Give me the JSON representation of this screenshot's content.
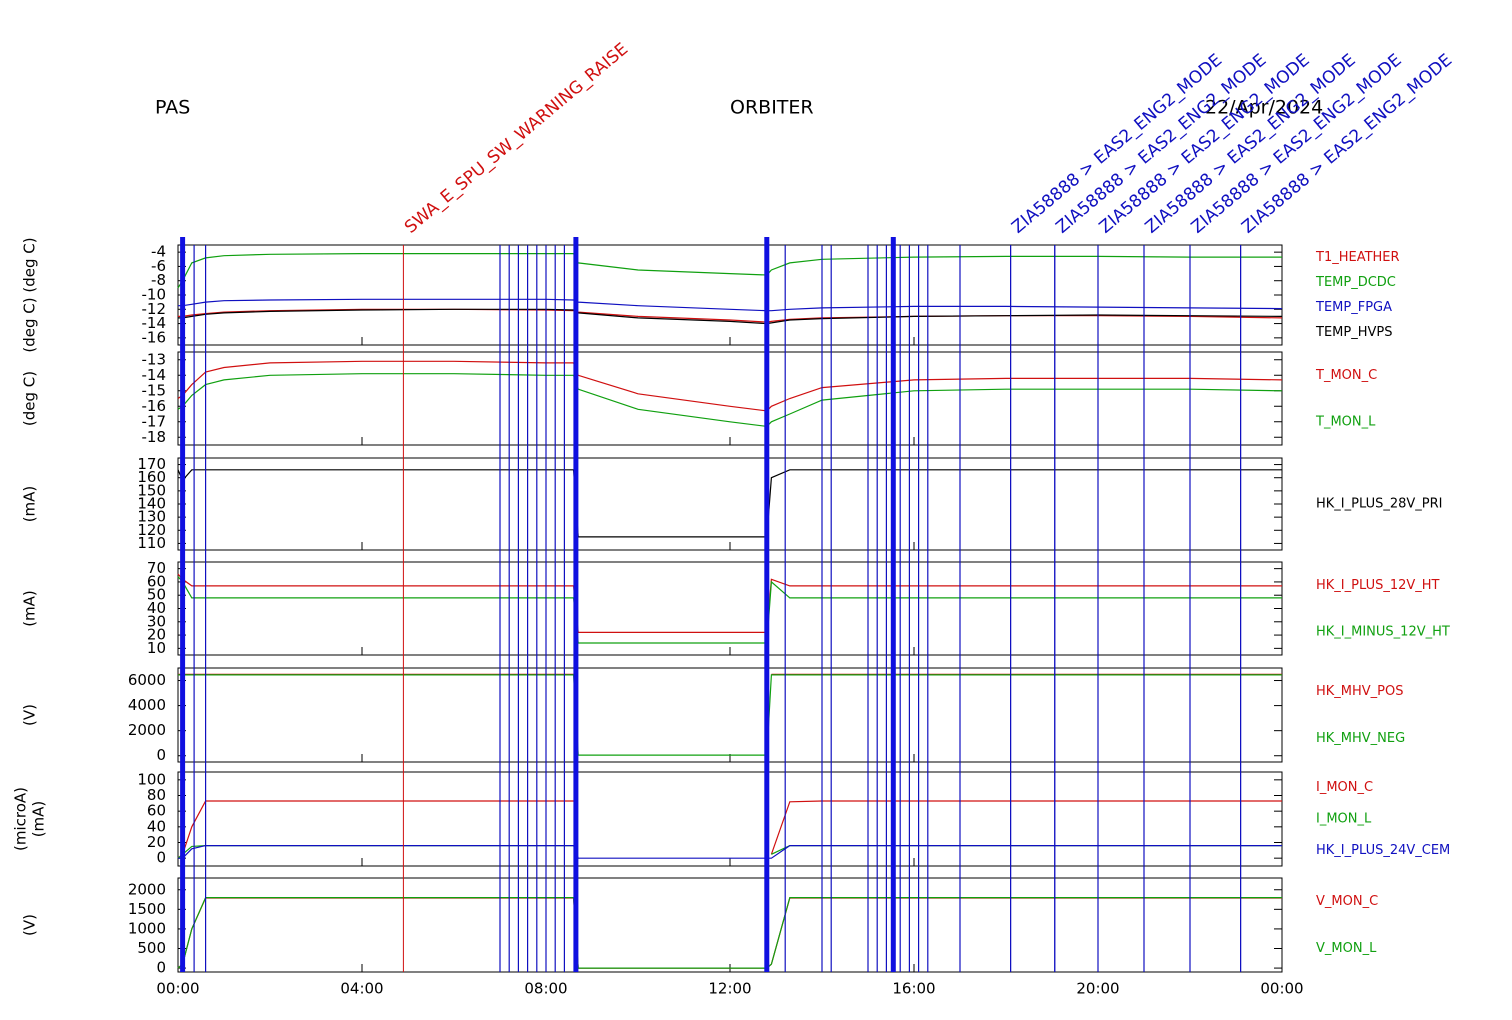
{
  "header": {
    "left": "PAS",
    "center": "ORBITER",
    "right": "22/Apr/2024"
  },
  "events": {
    "lines": [
      0.35,
      0.6,
      7.0,
      7.2,
      7.4,
      7.6,
      7.8,
      8.0,
      8.2,
      8.4,
      13.2,
      14.0,
      14.2,
      15.0,
      15.2,
      15.4,
      15.7,
      15.9,
      16.1,
      16.3,
      17.0,
      18.1,
      19.06,
      20.0,
      21.0,
      22.0,
      23.1
    ],
    "thick_lines": [
      0.1,
      8.65,
      12.8,
      15.55
    ],
    "labeled": [
      {
        "x": 4.9,
        "label": "SWA_E_SPU_SW_WARNING_RAISE",
        "color": "#d01010"
      },
      {
        "x": 18.1,
        "label": "ZIA58888 > EAS2_ENG2_MODE",
        "color": "#1010c0"
      },
      {
        "x": 19.06,
        "label": "ZIA58888 > EAS2_ENG2_MODE",
        "color": "#1010c0"
      },
      {
        "x": 20.0,
        "label": "ZIA58888 > EAS2_ENG2_MODE",
        "color": "#1010c0"
      },
      {
        "x": 21.0,
        "label": "ZIA58888 > EAS2_ENG2_MODE",
        "color": "#1010c0"
      },
      {
        "x": 22.0,
        "label": "ZIA58888 > EAS2_ENG2_MODE",
        "color": "#1010c0"
      },
      {
        "x": 23.1,
        "label": "ZIA58888 > EAS2_ENG2_MODE",
        "color": "#1010c0"
      }
    ]
  },
  "chart_data": [
    {
      "type": "line",
      "ylabel": [
        "(deg C) (deg C)"
      ],
      "ylim": [
        -17,
        -3
      ],
      "yticks": [
        -4,
        -6,
        -8,
        -10,
        -12,
        -14,
        -16
      ],
      "x": [
        0,
        0.1,
        0.3,
        0.6,
        1,
        2,
        4,
        6,
        8,
        8.6,
        8.7,
        10,
        12,
        12.8,
        12.9,
        13.3,
        14,
        16,
        18,
        20,
        22,
        24
      ],
      "series": [
        {
          "name": "T1_HEATHER",
          "color": "#d01010",
          "values": [
            -13,
            -13,
            -12.8,
            -12.6,
            -12.4,
            -12.2,
            -12,
            -12,
            -12.1,
            -12.2,
            -12.4,
            -13,
            -13.5,
            -13.8,
            -13.7,
            -13.4,
            -13.2,
            -13,
            -12.9,
            -12.9,
            -13,
            -13.2
          ]
        },
        {
          "name": "TEMP_DCDC",
          "color": "#10a010",
          "values": [
            -9,
            -8,
            -5.5,
            -4.8,
            -4.5,
            -4.3,
            -4.2,
            -4.2,
            -4.2,
            -4.2,
            -5.5,
            -6.5,
            -7,
            -7.2,
            -6.5,
            -5.5,
            -5,
            -4.7,
            -4.6,
            -4.6,
            -4.7,
            -4.7
          ]
        },
        {
          "name": "TEMP_FPGA",
          "color": "#1010c0",
          "values": [
            -11.5,
            -11.5,
            -11.3,
            -11,
            -10.8,
            -10.7,
            -10.6,
            -10.6,
            -10.6,
            -10.7,
            -11,
            -11.5,
            -12,
            -12.2,
            -12.2,
            -12,
            -11.8,
            -11.6,
            -11.6,
            -11.7,
            -11.8,
            -11.9
          ]
        },
        {
          "name": "TEMP_HVPS",
          "color": "#000000",
          "values": [
            -13.2,
            -13.2,
            -13,
            -12.7,
            -12.5,
            -12.3,
            -12.1,
            -12,
            -12,
            -12.1,
            -12.5,
            -13.2,
            -13.7,
            -14,
            -13.9,
            -13.5,
            -13.3,
            -13,
            -12.9,
            -12.8,
            -12.9,
            -13
          ]
        }
      ]
    },
    {
      "type": "line",
      "ylabel": [
        "(deg C)"
      ],
      "ylim": [
        -18.5,
        -12.5
      ],
      "yticks": [
        -13,
        -14,
        -15,
        -16,
        -17,
        -18
      ],
      "x": [
        0,
        0.1,
        0.3,
        0.6,
        1,
        2,
        4,
        6,
        8,
        8.6,
        8.7,
        10,
        12,
        12.8,
        12.9,
        13.3,
        14,
        16,
        18,
        20,
        22,
        24
      ],
      "series": [
        {
          "name": "T_MON_C",
          "color": "#d01010",
          "values": [
            -15.5,
            -15.3,
            -14.6,
            -13.8,
            -13.5,
            -13.2,
            -13.1,
            -13.1,
            -13.2,
            -13.2,
            -14,
            -15.2,
            -16,
            -16.3,
            -16,
            -15.5,
            -14.8,
            -14.3,
            -14.2,
            -14.2,
            -14.2,
            -14.3
          ]
        },
        {
          "name": "T_MON_L",
          "color": "#10a010",
          "values": [
            -16.2,
            -16,
            -15.3,
            -14.6,
            -14.3,
            -14,
            -13.9,
            -13.9,
            -14,
            -14,
            -14.9,
            -16.2,
            -17,
            -17.3,
            -17,
            -16.5,
            -15.6,
            -15,
            -14.9,
            -14.9,
            -14.9,
            -15
          ]
        }
      ]
    },
    {
      "type": "line",
      "ylabel": [
        "(mA)"
      ],
      "ylim": [
        105,
        175
      ],
      "yticks": [
        110,
        120,
        130,
        140,
        150,
        160,
        170
      ],
      "x": [
        0,
        0.1,
        0.3,
        0.6,
        1,
        2,
        4,
        6,
        8,
        8.6,
        8.7,
        10,
        12,
        12.8,
        12.9,
        13.3,
        14,
        16,
        18,
        20,
        22,
        24
      ],
      "series": [
        {
          "name": "HK_I_PLUS_28V_PRI",
          "color": "#000000",
          "values": [
            166,
            158,
            166,
            166,
            166,
            166,
            166,
            166,
            166,
            166,
            115,
            115,
            115,
            115,
            160,
            166,
            166,
            166,
            166,
            166,
            166,
            166
          ]
        }
      ]
    },
    {
      "type": "line",
      "ylabel": [
        "(mA)"
      ],
      "ylim": [
        5,
        75
      ],
      "yticks": [
        10,
        20,
        30,
        40,
        50,
        60,
        70
      ],
      "x": [
        0,
        0.1,
        0.3,
        0.6,
        1,
        2,
        4,
        6,
        8,
        8.6,
        8.7,
        10,
        12,
        12.8,
        12.9,
        13.3,
        14,
        16,
        18,
        20,
        22,
        24
      ],
      "series": [
        {
          "name": "HK_I_PLUS_12V_HT",
          "color": "#d01010",
          "values": [
            66,
            62,
            57,
            57,
            57,
            57,
            57,
            57,
            57,
            57,
            22,
            22,
            22,
            22,
            62,
            57,
            57,
            57,
            57,
            57,
            57,
            57
          ]
        },
        {
          "name": "HK_I_MINUS_12V_HT",
          "color": "#10a010",
          "values": [
            64,
            60,
            48,
            48,
            48,
            48,
            48,
            48,
            48,
            48,
            14,
            14,
            14,
            14,
            60,
            48,
            48,
            48,
            48,
            48,
            48,
            48
          ]
        }
      ]
    },
    {
      "type": "line",
      "ylabel": [
        "(V)"
      ],
      "ylim": [
        -500,
        7000
      ],
      "yticks": [
        0,
        2000,
        4000,
        6000
      ],
      "x": [
        0,
        0.1,
        0.3,
        0.6,
        1,
        2,
        4,
        6,
        8,
        8.6,
        8.7,
        10,
        12,
        12.8,
        12.9,
        13.3,
        14,
        16,
        18,
        20,
        22,
        24
      ],
      "series": [
        {
          "name": "HK_MHV_POS",
          "color": "#d01010",
          "values": [
            6500,
            6500,
            6500,
            6500,
            6500,
            6500,
            6500,
            6500,
            6500,
            6500,
            null,
            null,
            null,
            null,
            6500,
            6500,
            6500,
            6500,
            6500,
            6500,
            6500,
            6500
          ]
        },
        {
          "name": "HK_MHV_NEG",
          "color": "#10a010",
          "values": [
            6450,
            6450,
            6450,
            6450,
            6450,
            6450,
            6450,
            6450,
            6450,
            6450,
            50,
            50,
            50,
            50,
            6450,
            6450,
            6450,
            6450,
            6450,
            6450,
            6450,
            6450
          ]
        }
      ]
    },
    {
      "type": "line",
      "ylabel": [
        "(microA)",
        "(mA)"
      ],
      "ylim": [
        -10,
        110
      ],
      "yticks": [
        0,
        20,
        40,
        60,
        80,
        100
      ],
      "x": [
        0,
        0.1,
        0.3,
        0.6,
        1,
        2,
        4,
        6,
        8,
        8.6,
        8.7,
        10,
        12,
        12.8,
        12.9,
        13.3,
        14,
        16,
        18,
        20,
        22,
        24
      ],
      "series": [
        {
          "name": "I_MON_C",
          "color": "#d01010",
          "values": [
            0,
            5,
            40,
            73,
            73,
            73,
            73,
            73,
            73,
            73,
            null,
            null,
            null,
            null,
            5,
            72,
            73,
            73,
            73,
            73,
            73,
            73
          ]
        },
        {
          "name": "I_MON_L",
          "color": "#10a010",
          "values": [
            0,
            5,
            15,
            16,
            16,
            16,
            16,
            16,
            16,
            16,
            null,
            null,
            null,
            null,
            5,
            16,
            16,
            16,
            16,
            16,
            16,
            16
          ]
        },
        {
          "name": "HK_I_PLUS_24V_CEM",
          "color": "#1010c0",
          "values": [
            0,
            0,
            12,
            16,
            16,
            16,
            16,
            16,
            16,
            16,
            0,
            0,
            0,
            0,
            0,
            16,
            16,
            16,
            16,
            16,
            16,
            16
          ]
        }
      ]
    },
    {
      "type": "line",
      "ylabel": [
        "(V)"
      ],
      "ylim": [
        -100,
        2300
      ],
      "yticks": [
        0,
        500,
        1000,
        1500,
        2000
      ],
      "x": [
        0,
        0.1,
        0.3,
        0.6,
        1,
        2,
        4,
        6,
        8,
        8.6,
        8.7,
        10,
        12,
        12.8,
        12.9,
        13.3,
        14,
        16,
        18,
        20,
        22,
        24
      ],
      "xlim": [
        0,
        24
      ],
      "xticks": [
        {
          "value": 0,
          "label": "00:00"
        },
        {
          "value": 4,
          "label": "04:00"
        },
        {
          "value": 8,
          "label": "08:00"
        },
        {
          "value": 12,
          "label": "12:00"
        },
        {
          "value": 16,
          "label": "16:00"
        },
        {
          "value": 20,
          "label": "20:00"
        },
        {
          "value": 24,
          "label": "00:00"
        }
      ],
      "series": [
        {
          "name": "V_MON_C",
          "color": "#d01010",
          "values": [
            0,
            100,
            1000,
            1790,
            1790,
            1790,
            1790,
            1790,
            1790,
            1790,
            0,
            0,
            0,
            0,
            100,
            1790,
            1790,
            1790,
            1790,
            1790,
            1790,
            1790
          ]
        },
        {
          "name": "V_MON_L",
          "color": "#10a010",
          "values": [
            0,
            100,
            1000,
            1800,
            1800,
            1800,
            1800,
            1800,
            1800,
            1800,
            0,
            0,
            0,
            0,
            100,
            1800,
            1800,
            1800,
            1800,
            1800,
            1800,
            1800
          ]
        }
      ]
    }
  ]
}
